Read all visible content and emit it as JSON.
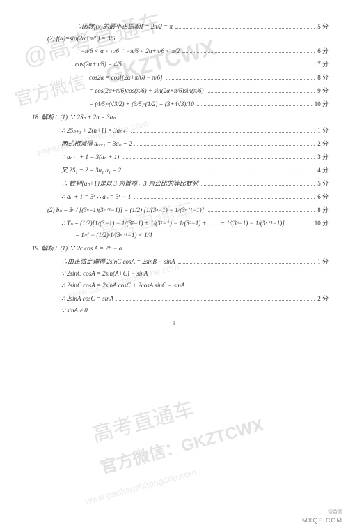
{
  "watermarks": {
    "cn1": "@高考直通车",
    "en1": "GKZTCWX",
    "url1": "www.gaokaozhitongche.com",
    "cn2": "官方微信",
    "bottom_cn": "高考直通车",
    "bottom_en": "官方微信：GKZTCWX",
    "bottom_url": "www.gaokaozhitongche.com"
  },
  "corner": {
    "brand": "智苗圃",
    "site": "MXQE.COM"
  },
  "page_number": "3",
  "lines": [
    {
      "indent": "indent-3",
      "text": "∴函数f(x)的最小正周期T = 2π/2 = π",
      "score": "5 分"
    },
    {
      "indent": "indent-1",
      "text": "(2) f(α)=sin(2α+π/6) = 3/5",
      "score": ""
    },
    {
      "indent": "indent-3",
      "text": "∵ −π/6 < α < π/6  ∴ −π/6 < 2α+π/6 < π/2",
      "score": "6 分"
    },
    {
      "indent": "indent-3",
      "text": "cos(2α+π/6) = 4/5",
      "score": "7 分"
    },
    {
      "indent": "indent-4",
      "text": "cos2α = cos[(2α+π/6) − π/6]",
      "score": "8 分"
    },
    {
      "indent": "indent-4",
      "text": "= cos(2α+π/6)cos(π/6) + sin(2α+π/6)sin(π/6)",
      "score": "9 分"
    },
    {
      "indent": "indent-4",
      "text": "= (4/5)·(√3/2) + (3/5)·(1/2) = (3+4√3)/10",
      "score": "10 分"
    },
    {
      "indent": "indent-q",
      "text": "18. 解析：(1) ∵ 2Sₙ + 2n = 3aₙ",
      "score": ""
    },
    {
      "indent": "indent-2",
      "text": "∴ 2Sₙ₊₁ + 2(n+1) = 3aₙ₊₁",
      "score": "1 分"
    },
    {
      "indent": "indent-2",
      "text": "两式相减得 aₙ₊₁ = 3aₙ + 2",
      "score": "2 分"
    },
    {
      "indent": "indent-2",
      "text": "∴ aₙ₊₁ + 1 = 3(aₙ + 1)",
      "score": "3 分"
    },
    {
      "indent": "indent-2",
      "text": "又 2S₁ + 2 = 3a₁   a₁ = 2",
      "score": "4 分"
    },
    {
      "indent": "indent-2",
      "text": "∴ 数列{aₙ+1}是以 3 为首项，3 为公比的等比数列",
      "score": "5 分"
    },
    {
      "indent": "indent-2",
      "text": "∴ aₙ + 1 = 3ⁿ     ∴ aₙ = 3ⁿ − 1",
      "score": "6 分"
    },
    {
      "indent": "indent-1",
      "text": "(2) bₙ = 3ⁿ / [(3ⁿ−1)(3ⁿ⁺¹−1)] = (1/2)·[1/(3ⁿ−1) − 1/(3ⁿ⁺¹−1)]",
      "score": "8 分"
    },
    {
      "indent": "indent-2",
      "text": "∴ Tₙ = (1/2)[1/(3−1) − 1/(3²−1) + 1/(3²−1) − 1/(3³−1) + …… + 1/(3ⁿ−1) − 1/(3ⁿ⁺¹−1)]",
      "score": "10 分"
    },
    {
      "indent": "indent-3",
      "text": "= 1/4 − (1/2)·1/(3ⁿ⁺¹−1) < 1/4",
      "score": ""
    },
    {
      "indent": "indent-q",
      "text": "19. 解析：(1) ∵ 2c cos A = 2b − a",
      "score": ""
    },
    {
      "indent": "indent-2",
      "text": "∴由正弦定理得 2sinC cosA = 2sinB − sinA",
      "score": "1 分"
    },
    {
      "indent": "indent-2",
      "text": "∵ 2sinC cosA = 2sin(A+C) − sinA",
      "score": ""
    },
    {
      "indent": "indent-2",
      "text": "∴ 2sinC cosA = 2sinA cosC + 2cosA sinC − sinA",
      "score": ""
    },
    {
      "indent": "indent-2",
      "text": "∴ 2sinA cosC = sinA",
      "score": "2 分"
    },
    {
      "indent": "indent-2",
      "text": "∵ sinA ≠ 0",
      "score": ""
    }
  ]
}
